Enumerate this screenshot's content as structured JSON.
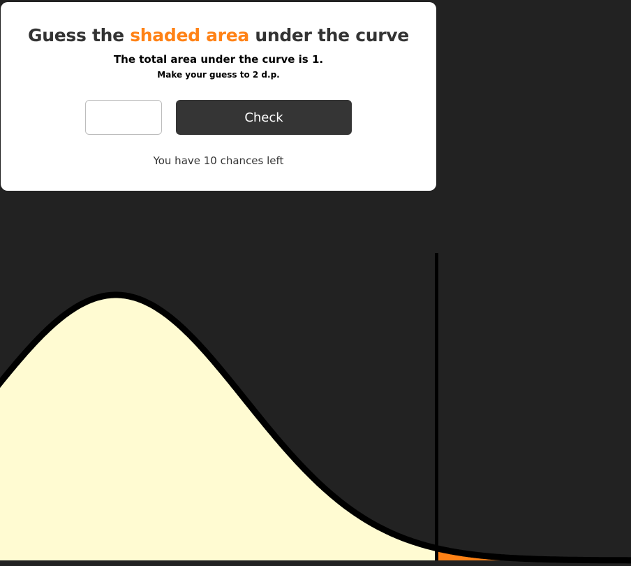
{
  "header": {
    "title_before": "Guess the ",
    "title_highlight": "shaded area",
    "title_after": " under the curve",
    "subtitle": "The total area under the curve is 1.",
    "instruction": "Make your guess to 2 d.p."
  },
  "form": {
    "guess_value": "",
    "guess_placeholder": "",
    "check_label": "Check"
  },
  "status": {
    "chances_text": "You have 10 chances left"
  },
  "colors": {
    "background": "#222222",
    "curve_fill": "#fffbd2",
    "shaded_fill": "#ff8216",
    "accent": "#ff8216",
    "button": "#353535"
  },
  "icons": []
}
